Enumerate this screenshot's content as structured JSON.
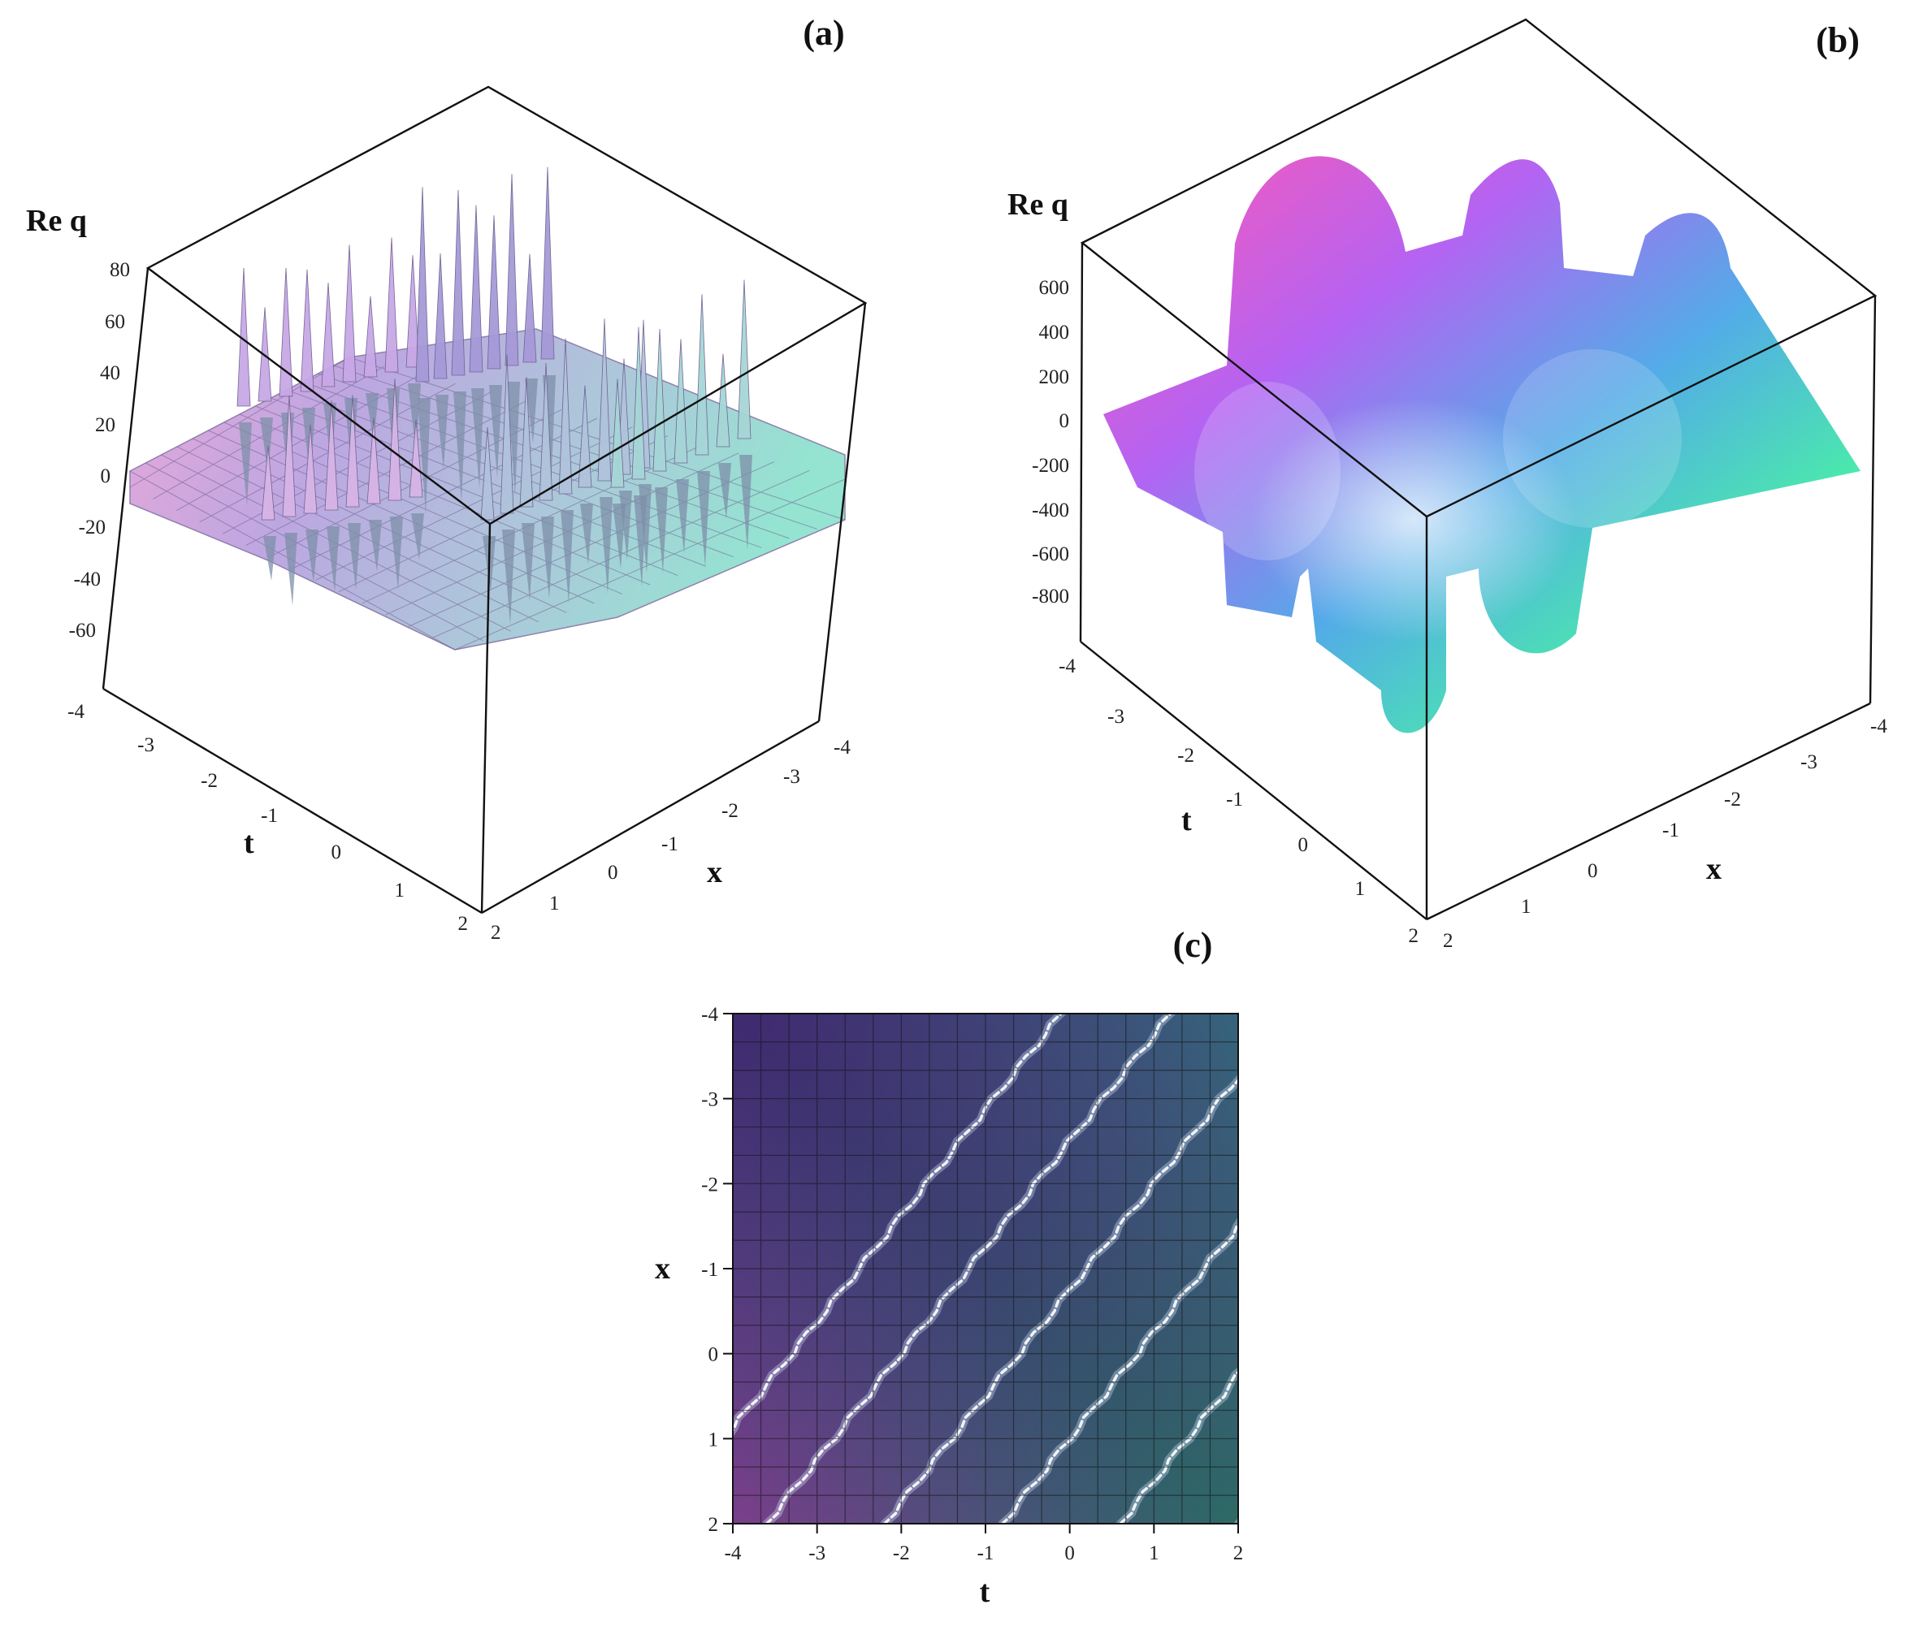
{
  "figure": {
    "panels": [
      {
        "id": "a",
        "label": "(a)"
      },
      {
        "id": "b",
        "label": "(b)"
      },
      {
        "id": "c",
        "label": "(c)"
      }
    ]
  },
  "colors": {
    "a_surface": [
      "#e9a3d8",
      "#b9a3e0",
      "#9fc9d8",
      "#8fe3cf"
    ],
    "b_surface": [
      "#ff4fb0",
      "#b05bf2",
      "#4aa7e6",
      "#40f0a0",
      "#f4ff60"
    ],
    "c_background": [
      "#3a2a66",
      "#3c3f70",
      "#2c6a6a"
    ]
  },
  "chart_data": [
    {
      "panel": "(a)",
      "type": "surface",
      "zlabel": "Re q",
      "xlabel": "x",
      "tlabel": "t",
      "z_ticks": [
        "80",
        "60",
        "40",
        "20",
        "0",
        "-20",
        "-40",
        "-60"
      ],
      "t_ticks": [
        "-4",
        "-3",
        "-2",
        "-1",
        "0",
        "1",
        "2"
      ],
      "x_ticks": [
        "-4",
        "-3",
        "-2",
        "-1",
        "0",
        "1",
        "2"
      ],
      "zlim": [
        -80,
        80
      ],
      "tlim": [
        -4,
        2
      ],
      "xlim": [
        -4,
        2
      ]
    },
    {
      "panel": "(b)",
      "type": "surface",
      "zlabel": "Re q",
      "xlabel": "x",
      "tlabel": "t",
      "z_ticks": [
        "600",
        "400",
        "200",
        "0",
        "-200",
        "-400",
        "-600",
        "-800"
      ],
      "t_ticks": [
        "-4",
        "-3",
        "-2",
        "-1",
        "0",
        "1",
        "2"
      ],
      "x_ticks": [
        "-4",
        "-3",
        "-2",
        "-1",
        "0",
        "1",
        "2"
      ],
      "zlim": [
        -900,
        800
      ],
      "tlim": [
        -4,
        2
      ],
      "xlim": [
        -4,
        2
      ]
    },
    {
      "panel": "(c)",
      "type": "heatmap",
      "xlabel": "t",
      "ylabel": "x",
      "x_ticks": [
        "-4",
        "-3",
        "-2",
        "-1",
        "0",
        "1",
        "2"
      ],
      "y_ticks": [
        "-4",
        "-3",
        "-2",
        "-1",
        "0",
        "1",
        "2"
      ],
      "xlim": [
        -4,
        2
      ],
      "ylim": [
        -4,
        2
      ],
      "grid": true
    }
  ]
}
